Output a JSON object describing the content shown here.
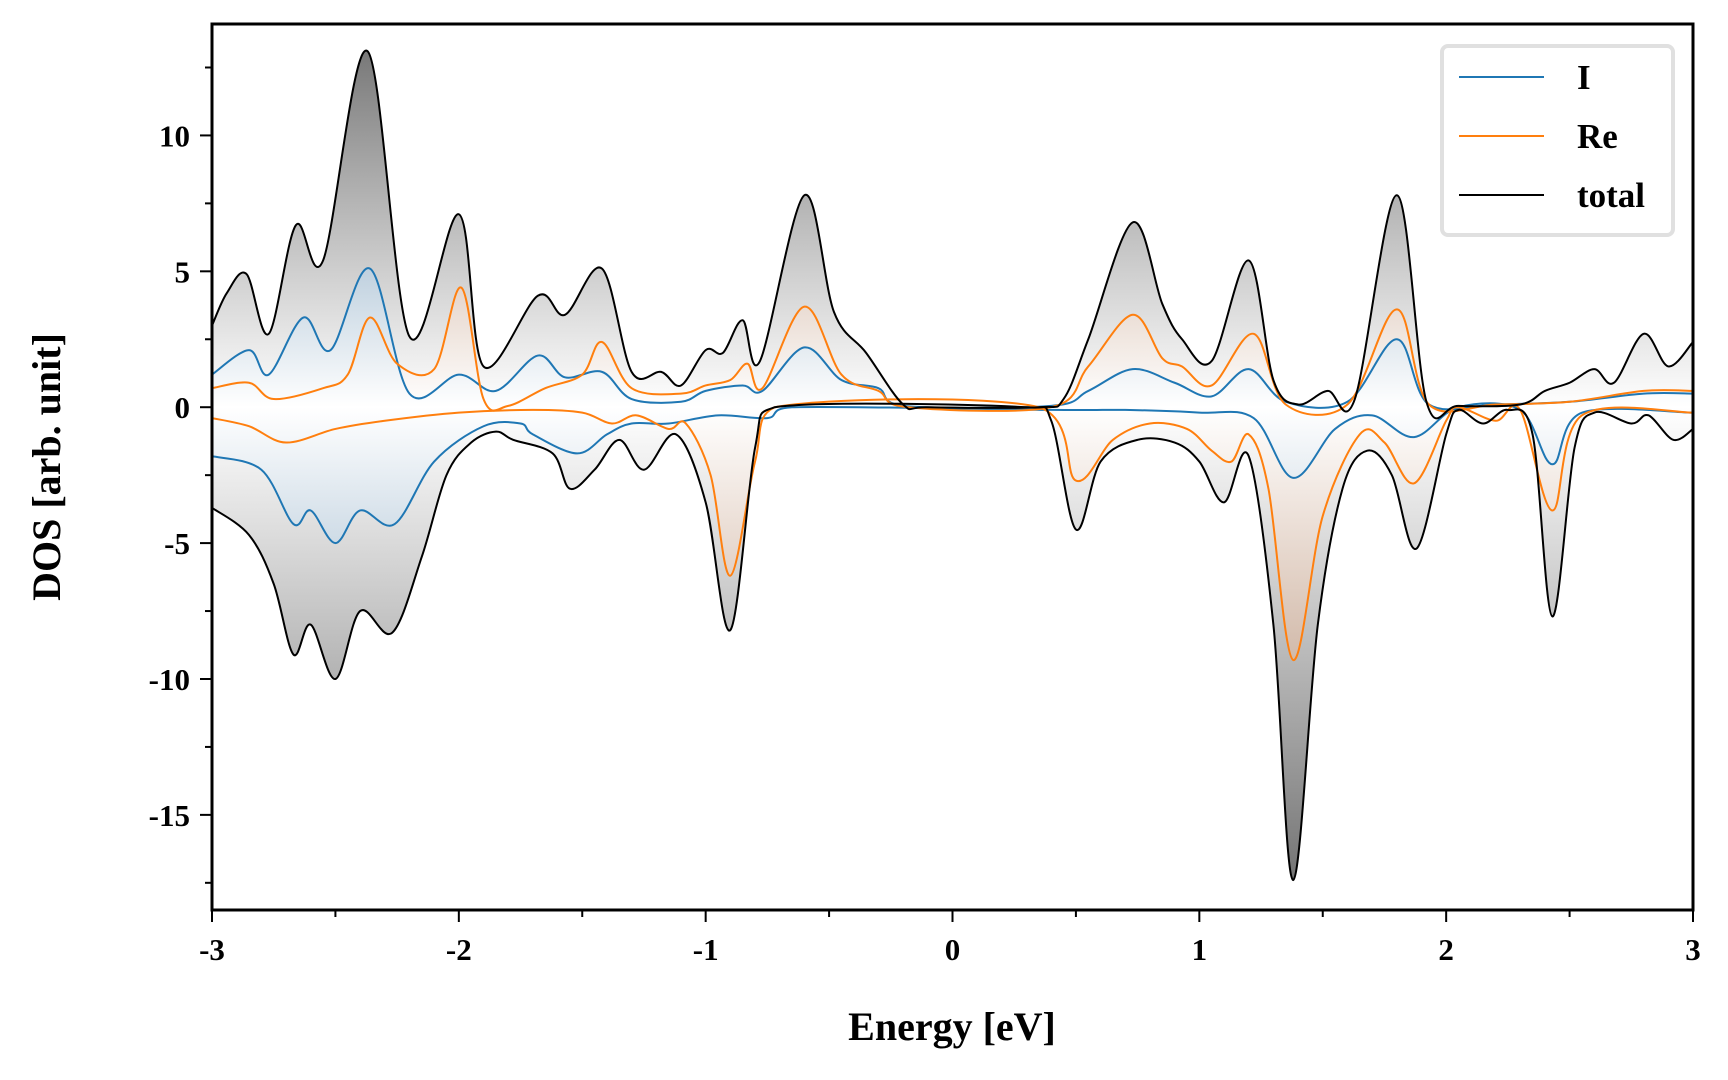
{
  "chart_data": {
    "type": "line",
    "title": "",
    "xlabel": "Energy [eV]",
    "ylabel": "DOS [arb. unit]",
    "xlim": [
      -3,
      3
    ],
    "ylim": [
      -18.5,
      14.1
    ],
    "xticks": [
      -3,
      -2,
      -1,
      0,
      1,
      2,
      3
    ],
    "xtick_labels": [
      "-3",
      "-2",
      "-1",
      "0",
      "1",
      "2",
      "3"
    ],
    "yticks": [
      10,
      5,
      0,
      -5,
      -10,
      -15
    ],
    "ytick_labels": [
      "10",
      "5",
      "0",
      "-5",
      "-10",
      "-15"
    ],
    "grid": false,
    "legend_position": "top-right",
    "colors": {
      "I": "#1f77b4",
      "Re": "#ff7f0e",
      "total": "#000000"
    },
    "series": [
      {
        "name": "I",
        "spin": "up",
        "points": [
          [
            -3,
            1.2
          ],
          [
            -2.85,
            2.1
          ],
          [
            -2.77,
            1.2
          ],
          [
            -2.63,
            3.3
          ],
          [
            -2.52,
            2.1
          ],
          [
            -2.36,
            5.1
          ],
          [
            -2.2,
            0.5
          ],
          [
            -2.0,
            1.2
          ],
          [
            -1.85,
            0.6
          ],
          [
            -1.68,
            1.9
          ],
          [
            -1.57,
            1.1
          ],
          [
            -1.42,
            1.3
          ],
          [
            -1.3,
            0.3
          ],
          [
            -1.1,
            0.2
          ],
          [
            -1.0,
            0.6
          ],
          [
            -0.85,
            0.8
          ],
          [
            -0.77,
            0.6
          ],
          [
            -0.6,
            2.2
          ],
          [
            -0.45,
            1.0
          ],
          [
            -0.3,
            0.7
          ],
          [
            -0.2,
            0.05
          ],
          [
            0.4,
            0.05
          ],
          [
            0.55,
            0.6
          ],
          [
            0.73,
            1.4
          ],
          [
            0.9,
            0.9
          ],
          [
            1.05,
            0.4
          ],
          [
            1.2,
            1.4
          ],
          [
            1.35,
            0.2
          ],
          [
            1.6,
            0.2
          ],
          [
            1.8,
            2.5
          ],
          [
            1.93,
            0.1
          ],
          [
            2.2,
            0.1
          ],
          [
            2.5,
            0.2
          ],
          [
            2.8,
            0.5
          ],
          [
            3.0,
            0.5
          ]
        ]
      },
      {
        "name": "I",
        "spin": "down",
        "points": [
          [
            -3,
            -1.8
          ],
          [
            -2.8,
            -2.3
          ],
          [
            -2.67,
            -4.3
          ],
          [
            -2.6,
            -3.8
          ],
          [
            -2.5,
            -5.0
          ],
          [
            -2.4,
            -3.8
          ],
          [
            -2.26,
            -4.3
          ],
          [
            -2.1,
            -2.0
          ],
          [
            -1.9,
            -0.7
          ],
          [
            -1.75,
            -0.6
          ],
          [
            -1.7,
            -1.0
          ],
          [
            -1.52,
            -1.7
          ],
          [
            -1.4,
            -1.0
          ],
          [
            -1.3,
            -0.6
          ],
          [
            -1.15,
            -0.6
          ],
          [
            -0.95,
            -0.3
          ],
          [
            -0.75,
            -0.4
          ],
          [
            -0.65,
            0
          ],
          [
            0.4,
            -0.1
          ],
          [
            0.7,
            -0.1
          ],
          [
            1.0,
            -0.2
          ],
          [
            1.22,
            -0.4
          ],
          [
            1.38,
            -2.6
          ],
          [
            1.55,
            -0.8
          ],
          [
            1.7,
            -0.3
          ],
          [
            1.87,
            -1.1
          ],
          [
            2.05,
            0
          ],
          [
            2.3,
            -0.1
          ],
          [
            2.43,
            -2.1
          ],
          [
            2.55,
            -0.2
          ],
          [
            3.0,
            -0.2
          ]
        ]
      },
      {
        "name": "Re",
        "spin": "up",
        "points": [
          [
            -3,
            0.7
          ],
          [
            -2.85,
            0.9
          ],
          [
            -2.75,
            0.3
          ],
          [
            -2.55,
            0.7
          ],
          [
            -2.45,
            1.2
          ],
          [
            -2.36,
            3.3
          ],
          [
            -2.25,
            1.6
          ],
          [
            -2.1,
            1.4
          ],
          [
            -1.99,
            4.4
          ],
          [
            -1.9,
            0.3
          ],
          [
            -1.8,
            0.05
          ],
          [
            -1.65,
            0.7
          ],
          [
            -1.5,
            1.2
          ],
          [
            -1.42,
            2.4
          ],
          [
            -1.3,
            0.7
          ],
          [
            -1.1,
            0.5
          ],
          [
            -1.0,
            0.8
          ],
          [
            -0.9,
            1.0
          ],
          [
            -0.83,
            1.6
          ],
          [
            -0.77,
            0.7
          ],
          [
            -0.6,
            3.7
          ],
          [
            -0.45,
            1.2
          ],
          [
            -0.3,
            0.6
          ],
          [
            -0.18,
            0
          ],
          [
            0.4,
            0
          ],
          [
            0.55,
            1.5
          ],
          [
            0.73,
            3.4
          ],
          [
            0.85,
            1.8
          ],
          [
            0.93,
            1.5
          ],
          [
            1.05,
            0.8
          ],
          [
            1.22,
            2.7
          ],
          [
            1.35,
            0.1
          ],
          [
            1.6,
            0.1
          ],
          [
            1.8,
            3.6
          ],
          [
            1.93,
            0.1
          ],
          [
            2.2,
            0.1
          ],
          [
            2.5,
            0.2
          ],
          [
            2.8,
            0.6
          ],
          [
            3.0,
            0.6
          ]
        ]
      },
      {
        "name": "Re",
        "spin": "down",
        "points": [
          [
            -3,
            -0.4
          ],
          [
            -2.85,
            -0.7
          ],
          [
            -2.7,
            -1.3
          ],
          [
            -2.5,
            -0.8
          ],
          [
            -2.3,
            -0.5
          ],
          [
            -2.0,
            -0.2
          ],
          [
            -1.7,
            -0.1
          ],
          [
            -1.5,
            -0.2
          ],
          [
            -1.38,
            -0.6
          ],
          [
            -1.28,
            -0.3
          ],
          [
            -1.15,
            -0.8
          ],
          [
            -1.08,
            -0.6
          ],
          [
            -0.98,
            -2.5
          ],
          [
            -0.9,
            -6.2
          ],
          [
            -0.8,
            -2.0
          ],
          [
            -0.72,
            0
          ],
          [
            0.35,
            0
          ],
          [
            0.5,
            -2.7
          ],
          [
            0.65,
            -1.2
          ],
          [
            0.8,
            -0.6
          ],
          [
            0.95,
            -0.8
          ],
          [
            1.05,
            -1.6
          ],
          [
            1.13,
            -2.0
          ],
          [
            1.2,
            -1.0
          ],
          [
            1.28,
            -3.0
          ],
          [
            1.38,
            -9.3
          ],
          [
            1.5,
            -4.0
          ],
          [
            1.65,
            -1.0
          ],
          [
            1.75,
            -1.3
          ],
          [
            1.87,
            -2.8
          ],
          [
            2.0,
            -0.5
          ],
          [
            2.05,
            0
          ],
          [
            2.2,
            -0.5
          ],
          [
            2.3,
            -0.1
          ],
          [
            2.43,
            -3.8
          ],
          [
            2.55,
            -0.3
          ],
          [
            3.0,
            -0.2
          ]
        ]
      },
      {
        "name": "total",
        "spin": "up",
        "points": [
          [
            -3,
            3.0
          ],
          [
            -2.94,
            4.2
          ],
          [
            -2.86,
            4.9
          ],
          [
            -2.77,
            2.7
          ],
          [
            -2.66,
            6.7
          ],
          [
            -2.55,
            5.4
          ],
          [
            -2.37,
            13.1
          ],
          [
            -2.2,
            2.6
          ],
          [
            -2.0,
            7.1
          ],
          [
            -1.9,
            1.5
          ],
          [
            -1.68,
            4.1
          ],
          [
            -1.57,
            3.4
          ],
          [
            -1.42,
            5.1
          ],
          [
            -1.3,
            1.3
          ],
          [
            -1.18,
            1.3
          ],
          [
            -1.1,
            0.8
          ],
          [
            -1.0,
            2.1
          ],
          [
            -0.93,
            2.0
          ],
          [
            -0.85,
            3.2
          ],
          [
            -0.78,
            1.7
          ],
          [
            -0.6,
            7.8
          ],
          [
            -0.48,
            3.5
          ],
          [
            -0.35,
            2.0
          ],
          [
            -0.2,
            0.1
          ],
          [
            -0.1,
            0
          ],
          [
            0.35,
            0
          ],
          [
            0.45,
            0.3
          ],
          [
            0.55,
            2.5
          ],
          [
            0.73,
            6.8
          ],
          [
            0.85,
            3.8
          ],
          [
            0.93,
            2.5
          ],
          [
            1.05,
            1.7
          ],
          [
            1.2,
            5.4
          ],
          [
            1.3,
            1.0
          ],
          [
            1.4,
            0.1
          ],
          [
            1.52,
            0.6
          ],
          [
            1.63,
            0.3
          ],
          [
            1.8,
            7.8
          ],
          [
            1.92,
            0.2
          ],
          [
            2.05,
            0.05
          ],
          [
            2.3,
            0.1
          ],
          [
            2.4,
            0.6
          ],
          [
            2.5,
            0.9
          ],
          [
            2.6,
            1.4
          ],
          [
            2.68,
            0.9
          ],
          [
            2.8,
            2.7
          ],
          [
            2.9,
            1.5
          ],
          [
            3.0,
            2.4
          ]
        ]
      },
      {
        "name": "total",
        "spin": "down",
        "points": [
          [
            -3,
            -3.7
          ],
          [
            -2.85,
            -4.7
          ],
          [
            -2.75,
            -6.5
          ],
          [
            -2.67,
            -9.1
          ],
          [
            -2.6,
            -8.0
          ],
          [
            -2.5,
            -10.0
          ],
          [
            -2.4,
            -7.5
          ],
          [
            -2.27,
            -8.3
          ],
          [
            -2.15,
            -5.5
          ],
          [
            -2.05,
            -2.5
          ],
          [
            -1.95,
            -1.3
          ],
          [
            -1.85,
            -0.9
          ],
          [
            -1.78,
            -1.2
          ],
          [
            -1.62,
            -1.7
          ],
          [
            -1.55,
            -3.0
          ],
          [
            -1.45,
            -2.3
          ],
          [
            -1.35,
            -1.2
          ],
          [
            -1.25,
            -2.3
          ],
          [
            -1.12,
            -1.0
          ],
          [
            -1.0,
            -3.5
          ],
          [
            -0.9,
            -8.2
          ],
          [
            -0.8,
            -1.5
          ],
          [
            -0.72,
            0
          ],
          [
            0.3,
            0
          ],
          [
            0.4,
            -0.5
          ],
          [
            0.5,
            -4.5
          ],
          [
            0.6,
            -2.0
          ],
          [
            0.75,
            -1.2
          ],
          [
            0.9,
            -1.3
          ],
          [
            1.0,
            -2.0
          ],
          [
            1.1,
            -3.5
          ],
          [
            1.2,
            -1.8
          ],
          [
            1.3,
            -8.0
          ],
          [
            1.38,
            -17.4
          ],
          [
            1.48,
            -8.0
          ],
          [
            1.58,
            -3.0
          ],
          [
            1.68,
            -1.6
          ],
          [
            1.78,
            -2.5
          ],
          [
            1.88,
            -5.2
          ],
          [
            2.0,
            -1.0
          ],
          [
            2.05,
            -0.1
          ],
          [
            2.15,
            -0.6
          ],
          [
            2.25,
            -0.1
          ],
          [
            2.35,
            -1.0
          ],
          [
            2.43,
            -7.7
          ],
          [
            2.52,
            -1.5
          ],
          [
            2.6,
            -0.2
          ],
          [
            2.75,
            -0.6
          ],
          [
            2.82,
            -0.3
          ],
          [
            2.92,
            -1.2
          ],
          [
            3.0,
            -0.8
          ]
        ]
      }
    ],
    "legend": [
      "I",
      "Re",
      "total"
    ]
  }
}
